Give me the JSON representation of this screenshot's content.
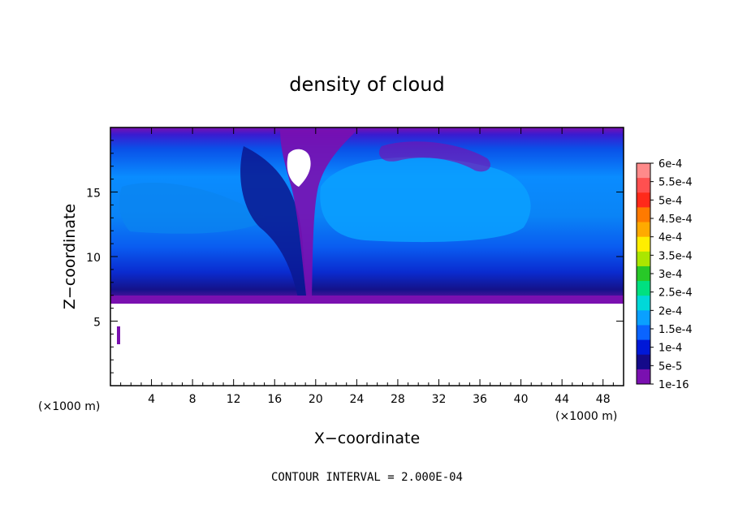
{
  "chart_data": {
    "type": "heatmap",
    "title": "density of cloud",
    "xlabel": "X−coordinate",
    "ylabel": "Z−coordinate",
    "x_unit_label_left": "(×1000 m)",
    "x_unit_label_right": "(×1000 m)",
    "xlim": [
      0,
      50
    ],
    "ylim": [
      0,
      20
    ],
    "x_ticks": [
      "4",
      "8",
      "12",
      "16",
      "20",
      "24",
      "28",
      "32",
      "36",
      "40",
      "44",
      "48"
    ],
    "y_ticks": [
      "5",
      "10",
      "15"
    ],
    "x_tick_values": [
      4,
      8,
      12,
      16,
      20,
      24,
      28,
      32,
      36,
      40,
      44,
      48
    ],
    "y_tick_values": [
      5,
      10,
      15
    ],
    "colorbar": {
      "labels": [
        "6e-4",
        "5.5e-4",
        "5e-4",
        "4.5e-4",
        "4e-4",
        "3.5e-4",
        "3e-4",
        "2.5e-4",
        "2e-4",
        "1.5e-4",
        "1e-4",
        "5e-5",
        "1e-16"
      ],
      "colors": [
        "#ff8a8a",
        "#ff5050",
        "#ff2a1a",
        "#ff7a00",
        "#ffaa00",
        "#ffee00",
        "#aae600",
        "#28c828",
        "#00e080",
        "#00d8d8",
        "#0aa0ff",
        "#0a64ff",
        "#0018d8",
        "#140a8a",
        "#7a10b0"
      ]
    },
    "field_description": "cloud present above about 6.3 km; near-zero below",
    "contour_interval": "CONTOUR INTERVAL = 2.000E-04"
  }
}
